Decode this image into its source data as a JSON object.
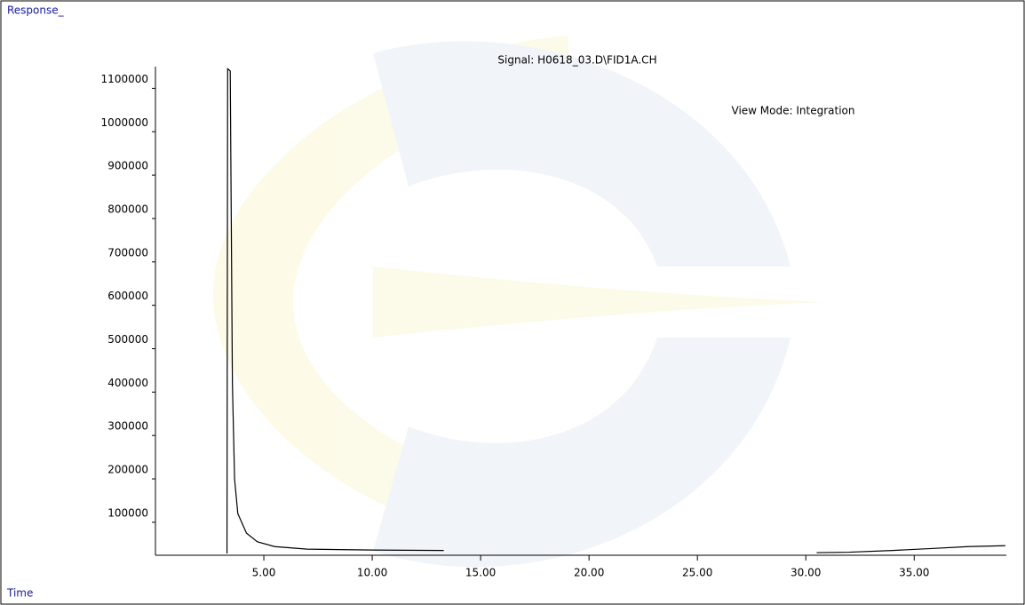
{
  "chart_data": {
    "type": "line",
    "title": "Signal: H0618_03.D\\FID1A.CH",
    "annotations": [
      "View Mode: Integration"
    ],
    "ylabel": "Response_",
    "xlabel": "Time",
    "x": [
      3.3,
      3.33,
      3.45,
      3.55,
      3.65,
      3.8,
      4.2,
      4.7,
      5.5,
      7,
      10,
      13.3,
      20,
      30.5,
      32,
      34,
      36,
      37.5,
      39.2
    ],
    "series": [
      {
        "name": "FID1A",
        "color": "#000000",
        "values": [
          28000,
          1145000,
          1140000,
          420000,
          200000,
          120000,
          75000,
          55000,
          44000,
          38000,
          36000,
          35000,
          null,
          30000,
          31000,
          35000,
          40000,
          44000,
          46000
        ]
      }
    ],
    "xlim": [
      0,
      39.25
    ],
    "ylim": [
      24000,
      1150000
    ],
    "xticks": [
      {
        "value": 5,
        "label": "5.00"
      },
      {
        "value": 10,
        "label": "10.00"
      },
      {
        "value": 15,
        "label": "15.00"
      },
      {
        "value": 20,
        "label": "20.00"
      },
      {
        "value": 25,
        "label": "25.00"
      },
      {
        "value": 30,
        "label": "30.00"
      },
      {
        "value": 35,
        "label": "35.00"
      }
    ],
    "yticks": [
      100000,
      200000,
      300000,
      400000,
      500000,
      600000,
      700000,
      800000,
      900000,
      1000000,
      1100000
    ]
  }
}
